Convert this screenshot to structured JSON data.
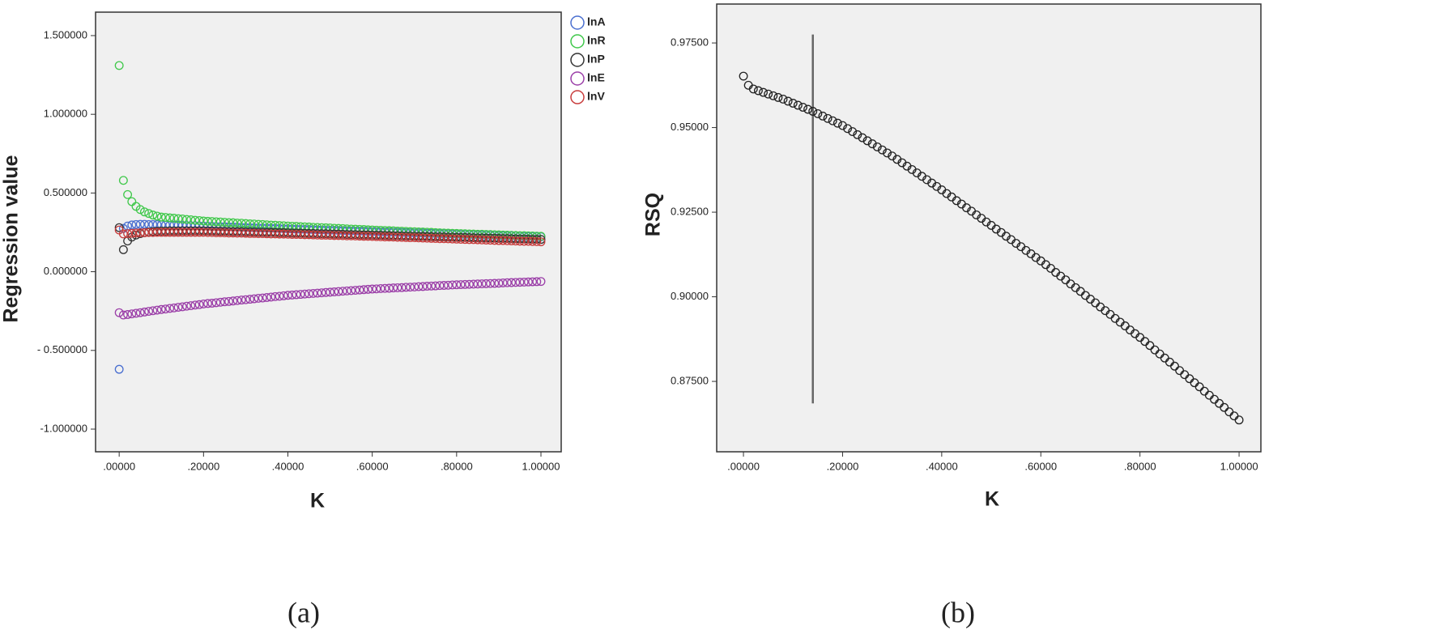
{
  "chart_data": [
    {
      "type": "scatter",
      "ylabel": "Regression value",
      "xlabel": "K",
      "caption": "(a)",
      "xlim": [
        -0.056,
        1.048
      ],
      "ylim": [
        -1.144,
        1.649
      ],
      "xticks": [
        {
          "value": 0,
          "label": ".00000"
        },
        {
          "value": 0.2,
          "label": ".20000"
        },
        {
          "value": 0.4,
          "label": ".40000"
        },
        {
          "value": 0.6,
          "label": ".60000"
        },
        {
          "value": 0.8,
          "label": ".80000"
        },
        {
          "value": 1,
          "label": "1.00000"
        }
      ],
      "yticks": [
        {
          "value": -1,
          "label": "-1.000000"
        },
        {
          "value": -0.5,
          "label": "- 0.500000"
        },
        {
          "value": 0,
          "label": "0.000000"
        },
        {
          "value": 0.5,
          "label": "0.500000"
        },
        {
          "value": 1,
          "label": "1.000000"
        },
        {
          "value": 1.5,
          "label": "1.500000"
        }
      ],
      "x": [
        0,
        0.01,
        0.02,
        0.03,
        0.04,
        0.05,
        0.06,
        0.07,
        0.08,
        0.09,
        0.1,
        0.11,
        0.12,
        0.13,
        0.14,
        0.15,
        0.16,
        0.17,
        0.18,
        0.19,
        0.2,
        0.21,
        0.22,
        0.23,
        0.24,
        0.25,
        0.26,
        0.27,
        0.28,
        0.29,
        0.3,
        0.31,
        0.32,
        0.33,
        0.34,
        0.35,
        0.36,
        0.37,
        0.38,
        0.39,
        0.4,
        0.41,
        0.42,
        0.43,
        0.44,
        0.45,
        0.46,
        0.47,
        0.48,
        0.49,
        0.5,
        0.51,
        0.52,
        0.53,
        0.54,
        0.55,
        0.56,
        0.57,
        0.58,
        0.59,
        0.6,
        0.61,
        0.62,
        0.63,
        0.64,
        0.65,
        0.66,
        0.67,
        0.68,
        0.69,
        0.7,
        0.71,
        0.72,
        0.73,
        0.74,
        0.75,
        0.76,
        0.77,
        0.78,
        0.79,
        0.8,
        0.81,
        0.82,
        0.83,
        0.84,
        0.85,
        0.86,
        0.87,
        0.88,
        0.89,
        0.9,
        0.91,
        0.92,
        0.93,
        0.94,
        0.95,
        0.96,
        0.97,
        0.98,
        0.99,
        1
      ],
      "series": [
        {
          "name": "lnA",
          "color": "#4a6fd0",
          "values": [
            -0.62,
            0.275,
            0.29,
            0.297,
            0.3,
            0.301,
            0.301,
            0.3,
            0.3,
            0.299,
            0.298,
            0.297,
            0.296,
            0.296,
            0.295,
            0.294,
            0.293,
            0.292,
            0.292,
            0.291,
            0.29,
            0.289,
            0.288,
            0.287,
            0.286,
            0.286,
            0.285,
            0.284,
            0.283,
            0.282,
            0.281,
            0.28,
            0.279,
            0.278,
            0.277,
            0.277,
            0.276,
            0.275,
            0.274,
            0.273,
            0.272,
            0.271,
            0.27,
            0.269,
            0.269,
            0.268,
            0.267,
            0.266,
            0.265,
            0.264,
            0.263,
            0.263,
            0.262,
            0.261,
            0.26,
            0.259,
            0.258,
            0.258,
            0.257,
            0.256,
            0.255,
            0.254,
            0.253,
            0.252,
            0.252,
            0.251,
            0.25,
            0.249,
            0.248,
            0.247,
            0.246,
            0.246,
            0.245,
            0.244,
            0.243,
            0.242,
            0.241,
            0.241,
            0.24,
            0.239,
            0.238,
            0.237,
            0.236,
            0.236,
            0.235,
            0.234,
            0.233,
            0.232,
            0.232,
            0.231,
            0.23,
            0.229,
            0.228,
            0.228,
            0.227,
            0.226,
            0.225,
            0.224,
            0.224,
            0.223,
            0.222
          ]
        },
        {
          "name": "lnR",
          "color": "#3fc84a",
          "values": [
            1.31,
            0.58,
            0.49,
            0.445,
            0.415,
            0.395,
            0.38,
            0.37,
            0.36,
            0.353,
            0.347,
            0.345,
            0.342,
            0.34,
            0.337,
            0.335,
            0.332,
            0.33,
            0.327,
            0.325,
            0.322,
            0.32,
            0.319,
            0.317,
            0.316,
            0.314,
            0.312,
            0.311,
            0.309,
            0.308,
            0.306,
            0.304,
            0.303,
            0.301,
            0.3,
            0.298,
            0.296,
            0.295,
            0.293,
            0.292,
            0.29,
            0.289,
            0.288,
            0.286,
            0.285,
            0.284,
            0.282,
            0.281,
            0.28,
            0.279,
            0.278,
            0.276,
            0.275,
            0.274,
            0.272,
            0.271,
            0.27,
            0.269,
            0.268,
            0.266,
            0.265,
            0.264,
            0.263,
            0.262,
            0.261,
            0.26,
            0.258,
            0.257,
            0.256,
            0.255,
            0.254,
            0.253,
            0.252,
            0.251,
            0.25,
            0.248,
            0.247,
            0.246,
            0.245,
            0.244,
            0.243,
            0.242,
            0.241,
            0.24,
            0.239,
            0.238,
            0.238,
            0.237,
            0.236,
            0.235,
            0.234,
            0.233,
            0.232,
            0.231,
            0.23,
            0.229,
            0.229,
            0.228,
            0.227,
            0.226,
            0.225
          ]
        },
        {
          "name": "lnP",
          "color": "#333333",
          "values": [
            0.28,
            0.14,
            0.195,
            0.22,
            0.233,
            0.242,
            0.248,
            0.252,
            0.255,
            0.257,
            0.258,
            0.258,
            0.259,
            0.259,
            0.259,
            0.26,
            0.26,
            0.26,
            0.26,
            0.26,
            0.26,
            0.259,
            0.259,
            0.258,
            0.257,
            0.257,
            0.256,
            0.255,
            0.255,
            0.254,
            0.253,
            0.253,
            0.252,
            0.251,
            0.251,
            0.25,
            0.25,
            0.249,
            0.248,
            0.248,
            0.247,
            0.246,
            0.246,
            0.245,
            0.244,
            0.243,
            0.243,
            0.242,
            0.241,
            0.241,
            0.24,
            0.239,
            0.239,
            0.238,
            0.237,
            0.236,
            0.236,
            0.235,
            0.234,
            0.234,
            0.233,
            0.232,
            0.232,
            0.231,
            0.23,
            0.229,
            0.229,
            0.228,
            0.227,
            0.227,
            0.226,
            0.225,
            0.225,
            0.224,
            0.223,
            0.222,
            0.222,
            0.221,
            0.22,
            0.22,
            0.219,
            0.218,
            0.218,
            0.217,
            0.216,
            0.215,
            0.215,
            0.214,
            0.213,
            0.213,
            0.212,
            0.211,
            0.211,
            0.21,
            0.209,
            0.208,
            0.208,
            0.207,
            0.206,
            0.206,
            0.205
          ]
        },
        {
          "name": "lnE",
          "color": "#9b3fa8",
          "values": [
            -0.26,
            -0.275,
            -0.272,
            -0.268,
            -0.264,
            -0.26,
            -0.256,
            -0.252,
            -0.248,
            -0.244,
            -0.24,
            -0.237,
            -0.233,
            -0.23,
            -0.226,
            -0.223,
            -0.219,
            -0.216,
            -0.212,
            -0.209,
            -0.205,
            -0.202,
            -0.2,
            -0.197,
            -0.194,
            -0.191,
            -0.189,
            -0.186,
            -0.183,
            -0.18,
            -0.178,
            -0.175,
            -0.172,
            -0.169,
            -0.167,
            -0.164,
            -0.161,
            -0.158,
            -0.156,
            -0.153,
            -0.15,
            -0.148,
            -0.146,
            -0.144,
            -0.142,
            -0.14,
            -0.138,
            -0.136,
            -0.134,
            -0.132,
            -0.13,
            -0.128,
            -0.126,
            -0.124,
            -0.122,
            -0.12,
            -0.118,
            -0.116,
            -0.114,
            -0.112,
            -0.11,
            -0.109,
            -0.107,
            -0.106,
            -0.105,
            -0.103,
            -0.102,
            -0.101,
            -0.099,
            -0.098,
            -0.097,
            -0.095,
            -0.094,
            -0.092,
            -0.091,
            -0.09,
            -0.088,
            -0.087,
            -0.086,
            -0.084,
            -0.083,
            -0.082,
            -0.081,
            -0.08,
            -0.079,
            -0.078,
            -0.077,
            -0.076,
            -0.075,
            -0.074,
            -0.073,
            -0.071,
            -0.07,
            -0.069,
            -0.068,
            -0.067,
            -0.066,
            -0.065,
            -0.064,
            -0.063,
            -0.062
          ]
        },
        {
          "name": "lnV",
          "color": "#c83c3c",
          "values": [
            0.265,
            0.24,
            0.242,
            0.244,
            0.246,
            0.247,
            0.248,
            0.249,
            0.249,
            0.25,
            0.25,
            0.25,
            0.25,
            0.25,
            0.25,
            0.25,
            0.25,
            0.25,
            0.25,
            0.25,
            0.25,
            0.249,
            0.249,
            0.248,
            0.248,
            0.247,
            0.246,
            0.246,
            0.245,
            0.245,
            0.244,
            0.243,
            0.243,
            0.242,
            0.242,
            0.241,
            0.24,
            0.24,
            0.239,
            0.239,
            0.238,
            0.237,
            0.237,
            0.236,
            0.235,
            0.235,
            0.234,
            0.233,
            0.232,
            0.232,
            0.231,
            0.23,
            0.23,
            0.229,
            0.228,
            0.228,
            0.227,
            0.226,
            0.225,
            0.225,
            0.224,
            0.223,
            0.222,
            0.221,
            0.221,
            0.22,
            0.219,
            0.218,
            0.217,
            0.216,
            0.216,
            0.215,
            0.214,
            0.213,
            0.212,
            0.211,
            0.21,
            0.21,
            0.209,
            0.208,
            0.207,
            0.206,
            0.205,
            0.204,
            0.204,
            0.203,
            0.202,
            0.201,
            0.2,
            0.199,
            0.198,
            0.198,
            0.197,
            0.196,
            0.195,
            0.194,
            0.193,
            0.193,
            0.192,
            0.191,
            0.19
          ]
        }
      ]
    },
    {
      "type": "scatter",
      "ylabel": "RSQ",
      "xlabel": "K",
      "caption": "(b)",
      "xlim": [
        -0.054,
        1.044
      ],
      "ylim": [
        0.8542,
        0.9865
      ],
      "xticks": [
        {
          "value": 0,
          "label": ".00000"
        },
        {
          "value": 0.2,
          "label": ".20000"
        },
        {
          "value": 0.4,
          "label": ".40000"
        },
        {
          "value": 0.6,
          "label": ".60000"
        },
        {
          "value": 0.8,
          "label": ".80000"
        },
        {
          "value": 1,
          "label": "1.00000"
        }
      ],
      "yticks": [
        {
          "value": 0.875,
          "label": "0.87500"
        },
        {
          "value": 0.9,
          "label": "0.90000"
        },
        {
          "value": 0.925,
          "label": "0.92500"
        },
        {
          "value": 0.95,
          "label": "0.95000"
        },
        {
          "value": 0.975,
          "label": "0.97500"
        }
      ],
      "reference_line": {
        "x": 0.14,
        "y": [
          0.8685,
          0.9775
        ],
        "color": "#666666"
      },
      "x": [
        0,
        0.01,
        0.02,
        0.03,
        0.04,
        0.05,
        0.06,
        0.07,
        0.08,
        0.09,
        0.1,
        0.11,
        0.12,
        0.13,
        0.14,
        0.15,
        0.16,
        0.17,
        0.18,
        0.19,
        0.2,
        0.21,
        0.22,
        0.23,
        0.24,
        0.25,
        0.26,
        0.27,
        0.28,
        0.29,
        0.3,
        0.31,
        0.32,
        0.33,
        0.34,
        0.35,
        0.36,
        0.37,
        0.38,
        0.39,
        0.4,
        0.41,
        0.42,
        0.43,
        0.44,
        0.45,
        0.46,
        0.47,
        0.48,
        0.49,
        0.5,
        0.51,
        0.52,
        0.53,
        0.54,
        0.55,
        0.56,
        0.57,
        0.58,
        0.59,
        0.6,
        0.61,
        0.62,
        0.63,
        0.64,
        0.65,
        0.66,
        0.67,
        0.68,
        0.69,
        0.7,
        0.71,
        0.72,
        0.73,
        0.74,
        0.75,
        0.76,
        0.77,
        0.78,
        0.79,
        0.8,
        0.81,
        0.82,
        0.83,
        0.84,
        0.85,
        0.86,
        0.87,
        0.88,
        0.89,
        0.9,
        0.91,
        0.92,
        0.93,
        0.94,
        0.95,
        0.96,
        0.97,
        0.98,
        0.99,
        1
      ],
      "series": [
        {
          "color": "#222222",
          "values": [
            0.9652,
            0.9625,
            0.9614,
            0.9609,
            0.9604,
            0.9599,
            0.9594,
            0.9589,
            0.9584,
            0.9578,
            0.9572,
            0.9566,
            0.956,
            0.9554,
            0.9548,
            0.9541,
            0.9534,
            0.9527,
            0.952,
            0.9513,
            0.9506,
            0.9497,
            0.9488,
            0.9479,
            0.947,
            0.9461,
            0.9452,
            0.9443,
            0.9434,
            0.9425,
            0.9416,
            0.9406,
            0.9396,
            0.9386,
            0.9376,
            0.9366,
            0.9356,
            0.9346,
            0.9336,
            0.9326,
            0.9316,
            0.9305,
            0.9295,
            0.9284,
            0.9274,
            0.9263,
            0.9253,
            0.9242,
            0.9232,
            0.9221,
            0.9211,
            0.92,
            0.919,
            0.9179,
            0.9169,
            0.9158,
            0.9148,
            0.9137,
            0.9127,
            0.9116,
            0.9106,
            0.9095,
            0.9084,
            0.9072,
            0.9061,
            0.905,
            0.9038,
            0.9027,
            0.9016,
            0.9004,
            0.8993,
            0.8982,
            0.897,
            0.8959,
            0.8948,
            0.8936,
            0.8925,
            0.8914,
            0.8902,
            0.8891,
            0.888,
            0.8868,
            0.8856,
            0.8843,
            0.8831,
            0.8819,
            0.8807,
            0.8795,
            0.8782,
            0.877,
            0.8758,
            0.8746,
            0.8734,
            0.8721,
            0.8709,
            0.8697,
            0.8685,
            0.8673,
            0.866,
            0.8648,
            0.8636
          ]
        }
      ]
    }
  ]
}
